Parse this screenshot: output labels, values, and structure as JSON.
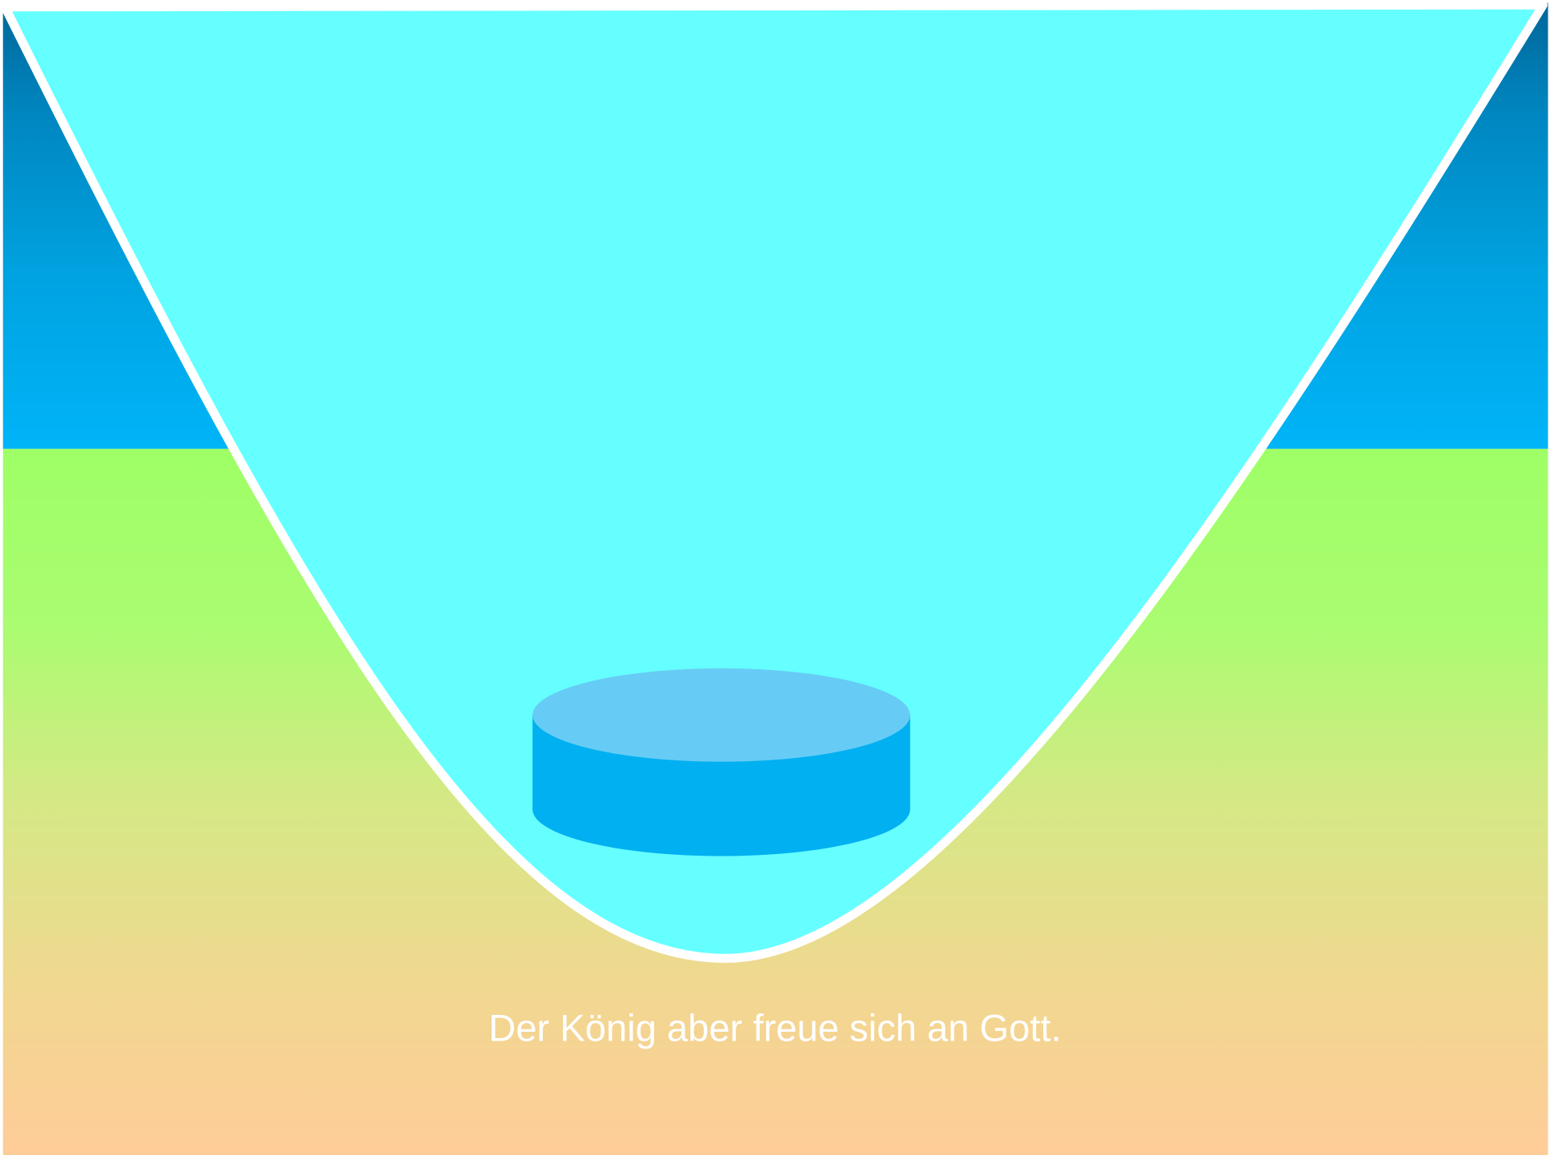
{
  "caption": "Der König aber freue sich an Gott."
}
